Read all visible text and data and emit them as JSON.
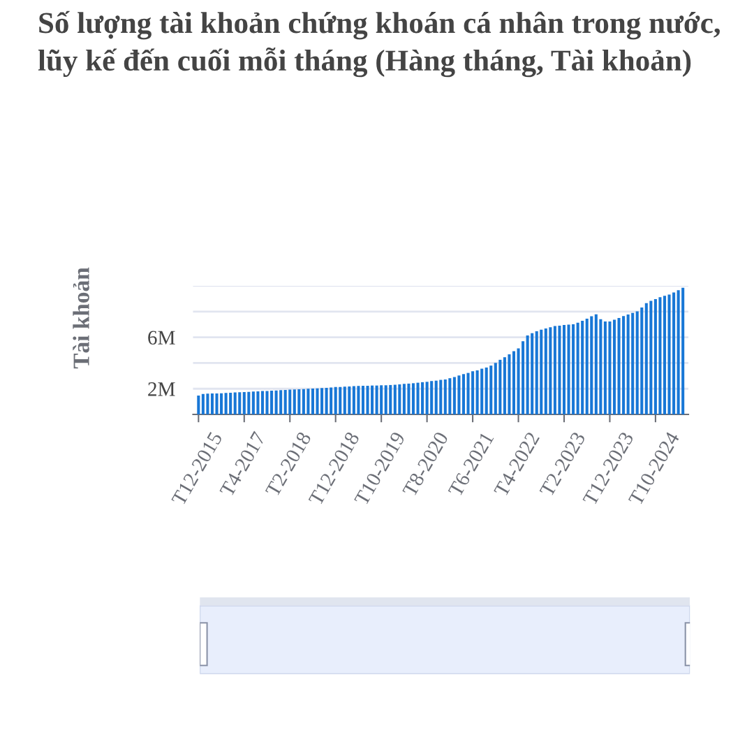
{
  "chart_data": {
    "type": "bar",
    "title": "Số lượng tài khoản chứng khoán cá nhân trong nước, lũy kế đến cuối mỗi tháng (Hàng tháng, Tài khoản)",
    "ylabel": "Tài khoản",
    "categories": [
      "T12-2015",
      null,
      null,
      null,
      null,
      null,
      null,
      null,
      null,
      null,
      "T4-2017",
      null,
      null,
      null,
      null,
      null,
      null,
      null,
      null,
      null,
      "T2-2018",
      null,
      null,
      null,
      null,
      null,
      null,
      null,
      null,
      null,
      "T12-2018",
      null,
      null,
      null,
      null,
      null,
      null,
      null,
      null,
      null,
      "T10-2019",
      null,
      null,
      null,
      null,
      null,
      null,
      null,
      null,
      null,
      "T8-2020",
      null,
      null,
      null,
      null,
      null,
      null,
      null,
      null,
      null,
      "T6-2021",
      null,
      null,
      null,
      null,
      null,
      null,
      null,
      null,
      null,
      "T4-2022",
      null,
      null,
      null,
      null,
      null,
      null,
      null,
      null,
      null,
      "T2-2023",
      null,
      null,
      null,
      null,
      null,
      null,
      null,
      null,
      null,
      "T12-2023",
      null,
      null,
      null,
      null,
      null,
      null,
      null,
      null,
      null,
      "T10-2024",
      null,
      null,
      null,
      null,
      null,
      null
    ],
    "values": [
      1470000,
      1600000,
      1620000,
      1630000,
      1630000,
      1650000,
      1670000,
      1690000,
      1710000,
      1730000,
      1740000,
      1760000,
      1780000,
      1800000,
      1820000,
      1830000,
      1850000,
      1870000,
      1890000,
      1910000,
      1930000,
      1940000,
      1960000,
      1980000,
      2000000,
      2020000,
      2030000,
      2050000,
      2070000,
      2090000,
      2130000,
      2140000,
      2160000,
      2180000,
      2200000,
      2220000,
      2230000,
      2230000,
      2250000,
      2250000,
      2270000,
      2270000,
      2290000,
      2310000,
      2340000,
      2380000,
      2400000,
      2430000,
      2470000,
      2510000,
      2540000,
      2600000,
      2630000,
      2690000,
      2720000,
      2820000,
      2910000,
      3030000,
      3140000,
      3230000,
      3360000,
      3430000,
      3560000,
      3650000,
      3800000,
      4010000,
      4250000,
      4450000,
      4670000,
      4920000,
      5140000,
      5690000,
      6140000,
      6320000,
      6470000,
      6590000,
      6690000,
      6780000,
      6870000,
      6900000,
      6960000,
      6990000,
      7010000,
      7140000,
      7280000,
      7450000,
      7630000,
      7790000,
      7410000,
      7230000,
      7230000,
      7360000,
      7500000,
      7650000,
      7770000,
      7900000,
      8010000,
      8320000,
      8660000,
      8830000,
      8970000,
      9120000,
      9230000,
      9320000,
      9480000,
      9660000,
      9850000
    ],
    "color": "#1877d6",
    "ylim": [
      0,
      10000000
    ],
    "yticks": [
      {
        "value": 2000000,
        "label": "2M"
      },
      {
        "value": 4000000,
        "label": null
      },
      {
        "value": 6000000,
        "label": "6M"
      },
      {
        "value": 8000000,
        "label": null
      },
      {
        "value": 10000000,
        "label": null
      }
    ],
    "grid": "y"
  }
}
